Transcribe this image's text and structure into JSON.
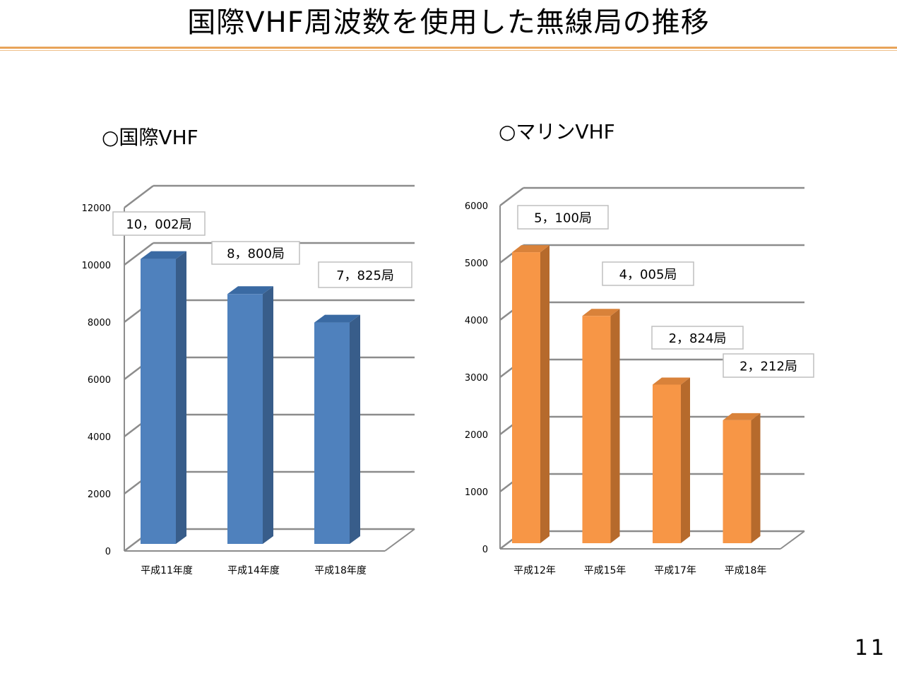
{
  "slide": {
    "title": "国際VHF周波数を使用した無線局の推移",
    "page_number": "11"
  },
  "colors": {
    "accent_rule": "#e8a45a",
    "grid": "#8c8c8c"
  },
  "chart_data": [
    {
      "type": "bar",
      "title": "○国際VHF",
      "categories": [
        "平成11年度",
        "平成14年度",
        "平成18年度"
      ],
      "values": [
        10002,
        8800,
        7825
      ],
      "data_labels": [
        "10，002局",
        "8，800局",
        "7，825局"
      ],
      "ylim": [
        0,
        12000
      ],
      "yticks": [
        0,
        2000,
        4000,
        6000,
        8000,
        10000,
        12000
      ],
      "grid": true,
      "style": "3d-column",
      "color": "#4f81bd",
      "color_dark": "#385d8a",
      "color_top": "#3a6aa3"
    },
    {
      "type": "bar",
      "title": "○マリンVHF",
      "categories": [
        "平成12年",
        "平成15年",
        "平成17年",
        "平成18年"
      ],
      "values": [
        5100,
        4005,
        2824,
        2212
      ],
      "data_labels": [
        "5，100局",
        "4，005局",
        "2，824局",
        "2，212局"
      ],
      "ylim": [
        0,
        6000
      ],
      "yticks": [
        0,
        1000,
        2000,
        3000,
        4000,
        5000,
        6000
      ],
      "grid": true,
      "style": "3d-column",
      "color": "#f79646",
      "color_dark": "#b66a2c",
      "color_top": "#d9823a"
    }
  ]
}
